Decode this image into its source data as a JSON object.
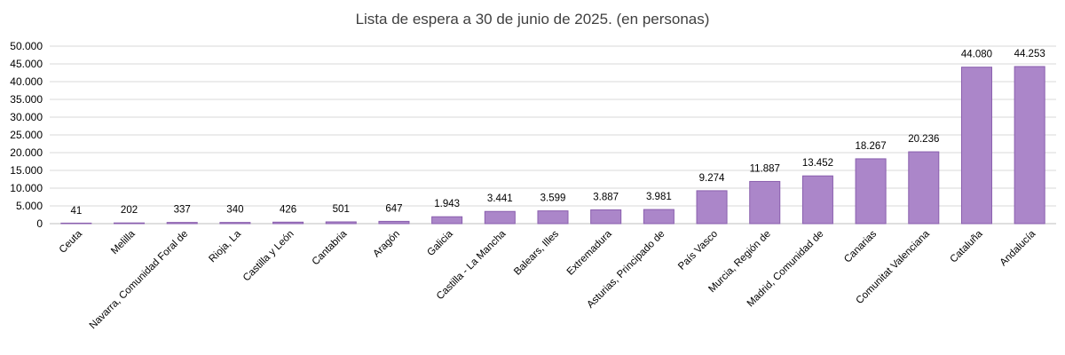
{
  "chart_data": {
    "type": "bar",
    "title": "Lista de espera a 30 de junio de 2025. (en personas)",
    "xlabel": "",
    "ylabel": "",
    "ylim": [
      0,
      50000
    ],
    "yticks": [
      0,
      5000,
      10000,
      15000,
      20000,
      25000,
      30000,
      35000,
      40000,
      45000,
      50000
    ],
    "ytick_labels": [
      "0",
      "5.000",
      "10.000",
      "15.000",
      "20.000",
      "25.000",
      "30.000",
      "35.000",
      "40.000",
      "45.000",
      "50.000"
    ],
    "grid": true,
    "legend": "none",
    "bar_color": "#ab86c9",
    "bar_edge_color": "#8a5fae",
    "categories": [
      "Ceuta",
      "Melilla",
      "Navarra, Comunidad Foral de",
      "Rioja, La",
      "Castilla y León",
      "Cantabria",
      "Aragón",
      "Galicia",
      "Castilla - La Mancha",
      "Balears, Illes",
      "Extremadura",
      "Asturias, Principado de",
      "País Vasco",
      "Murcia, Región de",
      "Madrid, Comunidad de",
      "Canarias",
      "Comunitat Valenciana",
      "Cataluña",
      "Andalucía"
    ],
    "values": [
      41,
      202,
      337,
      340,
      426,
      501,
      647,
      1943,
      3441,
      3599,
      3887,
      3981,
      9274,
      11887,
      13452,
      18267,
      20236,
      44080,
      44253
    ],
    "data_labels": [
      "41",
      "202",
      "337",
      "340",
      "426",
      "501",
      "647",
      "1.943",
      "3.441",
      "3.599",
      "3.887",
      "3.981",
      "9.274",
      "11.887",
      "13.452",
      "18.267",
      "20.236",
      "44.080",
      "44.253"
    ]
  }
}
